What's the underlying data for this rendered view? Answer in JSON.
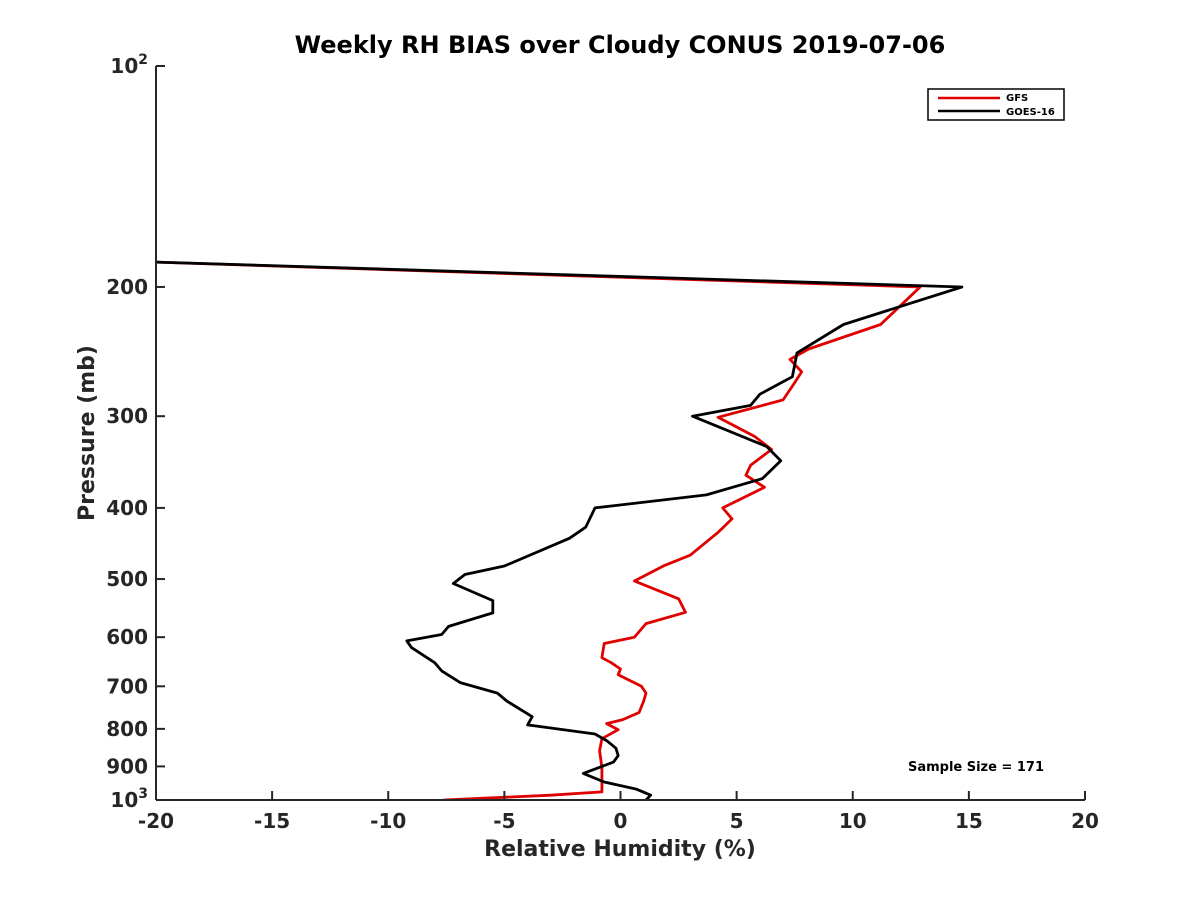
{
  "chart_data": {
    "type": "line",
    "title": "Weekly RH BIAS over Cloudy CONUS 2019-07-06",
    "xlabel": "Relative Humidity (%)",
    "ylabel": "Pressure (mb)",
    "xlim": [
      -20,
      20
    ],
    "ylim": [
      100,
      1000
    ],
    "y_scale": "log",
    "y_reversed": true,
    "x_ticks": [
      "-20",
      "-15",
      "-10",
      "-5",
      "0",
      "5",
      "10",
      "15",
      "20"
    ],
    "y_ticks": [
      {
        "value": 100,
        "base": "10",
        "exp": "2"
      },
      {
        "value": 200,
        "label": "200"
      },
      {
        "value": 300,
        "label": "300"
      },
      {
        "value": 400,
        "label": "400"
      },
      {
        "value": 500,
        "label": "500"
      },
      {
        "value": 600,
        "label": "600"
      },
      {
        "value": 700,
        "label": "700"
      },
      {
        "value": 800,
        "label": "800"
      },
      {
        "value": 900,
        "label": "900"
      },
      {
        "value": 1000,
        "base": "10",
        "exp": "3"
      }
    ],
    "legend_position": "top-right",
    "annotation": "Sample Size = 171",
    "series": [
      {
        "name": "GFS",
        "color": "#e00000",
        "points": [
          [
            -20,
            185
          ],
          [
            12.9,
            200
          ],
          [
            11.2,
            225
          ],
          [
            8.1,
            243
          ],
          [
            7.3,
            251
          ],
          [
            7.8,
            261
          ],
          [
            7.5,
            270
          ],
          [
            7.0,
            285
          ],
          [
            4.2,
            301
          ],
          [
            5.8,
            320
          ],
          [
            6.5,
            333
          ],
          [
            5.6,
            350
          ],
          [
            5.4,
            361
          ],
          [
            6.2,
            375
          ],
          [
            4.4,
            400
          ],
          [
            4.8,
            414
          ],
          [
            4.2,
            432
          ],
          [
            3.0,
            464
          ],
          [
            1.9,
            479
          ],
          [
            0.6,
            503
          ],
          [
            2.5,
            532
          ],
          [
            2.8,
            555
          ],
          [
            1.1,
            575
          ],
          [
            0.6,
            600
          ],
          [
            -0.7,
            612
          ],
          [
            -0.8,
            640
          ],
          [
            -0.4,
            650
          ],
          [
            0.0,
            663
          ],
          [
            -0.1,
            675
          ],
          [
            0.9,
            700
          ],
          [
            1.1,
            715
          ],
          [
            1.0,
            733
          ],
          [
            0.8,
            760
          ],
          [
            0.1,
            777
          ],
          [
            -0.6,
            787
          ],
          [
            -0.1,
            802
          ],
          [
            -0.8,
            825
          ],
          [
            -0.9,
            857
          ],
          [
            -0.8,
            903
          ],
          [
            -0.8,
            975
          ],
          [
            -3.0,
            985
          ],
          [
            -7.6,
            1000
          ]
        ]
      },
      {
        "name": "GOES-16",
        "color": "#000000",
        "points": [
          [
            -20,
            185
          ],
          [
            14.7,
            200
          ],
          [
            9.6,
            225
          ],
          [
            7.6,
            246
          ],
          [
            7.4,
            265
          ],
          [
            6.0,
            280
          ],
          [
            5.6,
            290
          ],
          [
            3.1,
            300
          ],
          [
            6.3,
            330
          ],
          [
            6.9,
            345
          ],
          [
            6.1,
            365
          ],
          [
            3.7,
            384
          ],
          [
            -1.1,
            400
          ],
          [
            -1.5,
            425
          ],
          [
            -2.2,
            440
          ],
          [
            -5.0,
            480
          ],
          [
            -6.7,
            493
          ],
          [
            -7.2,
            507
          ],
          [
            -5.5,
            535
          ],
          [
            -5.5,
            556
          ],
          [
            -7.4,
            580
          ],
          [
            -7.7,
            595
          ],
          [
            -9.2,
            607
          ],
          [
            -9.0,
            620
          ],
          [
            -8.0,
            650
          ],
          [
            -7.7,
            667
          ],
          [
            -6.9,
            692
          ],
          [
            -5.3,
            715
          ],
          [
            -4.9,
            733
          ],
          [
            -3.8,
            770
          ],
          [
            -4.0,
            790
          ],
          [
            -1.1,
            813
          ],
          [
            -0.6,
            830
          ],
          [
            -0.2,
            850
          ],
          [
            -0.1,
            870
          ],
          [
            -0.3,
            888
          ],
          [
            -1.6,
            920
          ],
          [
            -0.7,
            945
          ],
          [
            0.7,
            967
          ],
          [
            1.3,
            985
          ],
          [
            1.1,
            1000
          ]
        ]
      }
    ]
  }
}
